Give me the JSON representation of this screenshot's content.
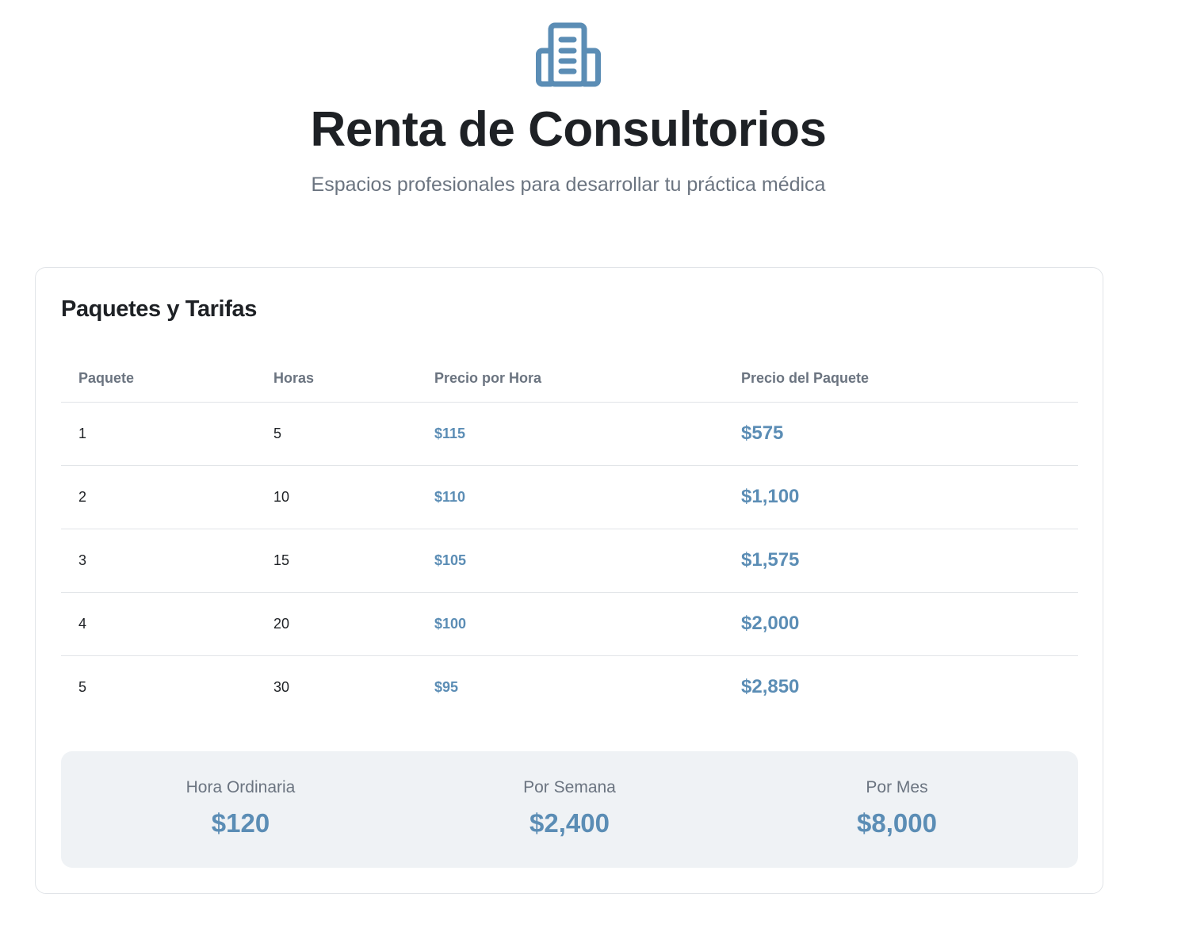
{
  "header": {
    "logo_icon": "building-icon",
    "title": "Renta de Consultorios",
    "subtitle": "Espacios profesionales para desarrollar tu práctica médica"
  },
  "rates_card": {
    "title": "Paquetes y Tarifas",
    "columns": [
      "Paquete",
      "Horas",
      "Precio por Hora",
      "Precio del Paquete"
    ],
    "rows": [
      {
        "package": "1",
        "hours": "5",
        "hourly_price": "$115",
        "package_price": "$575"
      },
      {
        "package": "2",
        "hours": "10",
        "hourly_price": "$110",
        "package_price": "$1,100"
      },
      {
        "package": "3",
        "hours": "15",
        "hourly_price": "$105",
        "package_price": "$1,575"
      },
      {
        "package": "4",
        "hours": "20",
        "hourly_price": "$100",
        "package_price": "$2,000"
      },
      {
        "package": "5",
        "hours": "30",
        "hourly_price": "$95",
        "package_price": "$2,850"
      }
    ],
    "summary": [
      {
        "label": "Hora Ordinaria",
        "value": "$120"
      },
      {
        "label": "Por Semana",
        "value": "$2,400"
      },
      {
        "label": "Por Mes",
        "value": "$8,000"
      }
    ]
  },
  "colors": {
    "accent": "#5b8db5",
    "text": "#1e2125",
    "muted": "#6b7480",
    "border": "#e1e4e8",
    "summary_bg": "#eff2f5"
  }
}
